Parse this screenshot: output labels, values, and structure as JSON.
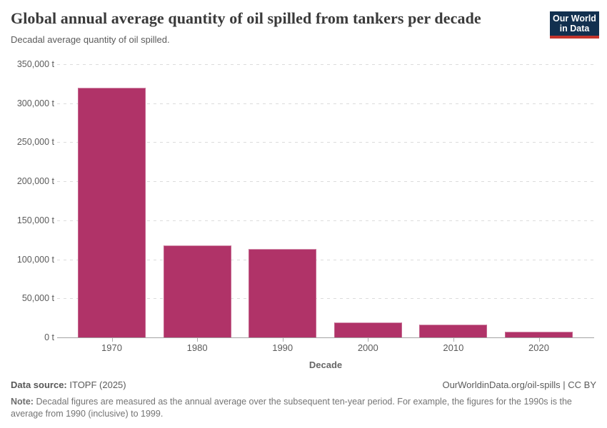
{
  "header": {
    "title": "Global annual average quantity of oil spilled from tankers per decade",
    "subtitle": "Decadal average quantity of oil spilled.",
    "logo": {
      "line1": "Our World",
      "line2": "in Data",
      "bg_color": "#12304f",
      "stripe_color": "#c4352c"
    }
  },
  "chart_data": {
    "type": "bar",
    "title": "Global annual average quantity of oil spilled from tankers per decade",
    "subtitle": "Decadal average quantity of oil spilled.",
    "categories": [
      "1970",
      "1980",
      "1990",
      "2000",
      "2010",
      "2020"
    ],
    "values": [
      320000,
      118000,
      113500,
      19600,
      16000,
      7300
    ],
    "unit": "t",
    "xlabel": "Decade",
    "ylabel": "",
    "ylim": [
      0,
      350000
    ],
    "ytick_interval": 50000,
    "ytick_labels": [
      "0 t",
      "50,000 t",
      "100,000 t",
      "150,000 t",
      "200,000 t",
      "250,000 t",
      "300,000 t",
      "350,000 t"
    ],
    "grid": "horizontal-dashed",
    "legend": "none",
    "bar_color": "#b03368"
  },
  "footer": {
    "source_label": "Data source:",
    "source_value": "ITOPF (2025)",
    "citation": "OurWorldinData.org/oil-spills | CC BY",
    "note_label": "Note:",
    "note_text": "Decadal figures are measured as the annual average over the subsequent ten-year period. For example, the figures for the 1990s is the average from 1990 (inclusive) to 1999."
  }
}
